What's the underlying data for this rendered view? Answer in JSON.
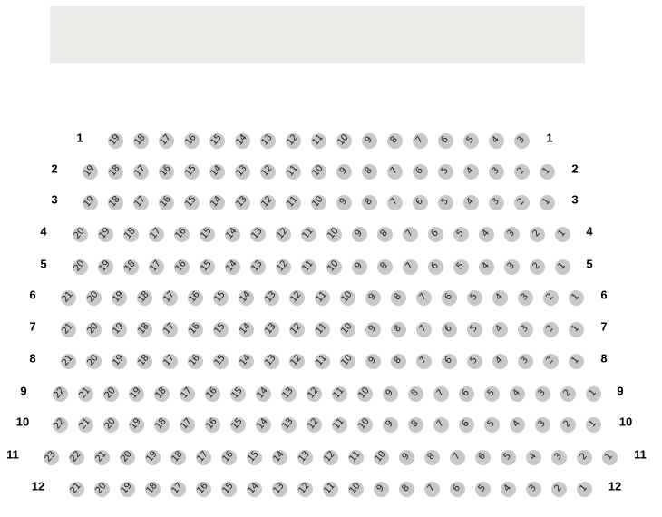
{
  "screen": {
    "label": ""
  },
  "seat_color": "#c8c8c8",
  "screen_color": "#ebebe7",
  "rows": [
    {
      "label": "1",
      "seats": [
        "19",
        "18",
        "17",
        "16",
        "15",
        "14",
        "13",
        "12",
        "11",
        "10",
        "9",
        "8",
        "7",
        "6",
        "5",
        "4",
        "3"
      ]
    },
    {
      "label": "2",
      "seats": [
        "19",
        "18",
        "17",
        "16",
        "15",
        "14",
        "13",
        "12",
        "11",
        "10",
        "9",
        "8",
        "7",
        "6",
        "5",
        "4",
        "3",
        "2",
        "1"
      ]
    },
    {
      "label": "3",
      "seats": [
        "19",
        "18",
        "17",
        "16",
        "15",
        "14",
        "13",
        "12",
        "11",
        "10",
        "9",
        "8",
        "7",
        "6",
        "5",
        "4",
        "3",
        "2",
        "1"
      ]
    },
    {
      "label": "4",
      "seats": [
        "20",
        "19",
        "18",
        "17",
        "16",
        "15",
        "14",
        "13",
        "12",
        "11",
        "10",
        "9",
        "8",
        "7",
        "6",
        "5",
        "4",
        "3",
        "2",
        "1"
      ]
    },
    {
      "label": "5",
      "seats": [
        "20",
        "19",
        "18",
        "17",
        "16",
        "15",
        "14",
        "13",
        "12",
        "11",
        "10",
        "9",
        "8",
        "7",
        "6",
        "5",
        "4",
        "3",
        "2",
        "1"
      ]
    },
    {
      "label": "6",
      "seats": [
        "21",
        "20",
        "19",
        "18",
        "17",
        "16",
        "15",
        "14",
        "13",
        "12",
        "11",
        "10",
        "9",
        "8",
        "7",
        "6",
        "5",
        "4",
        "3",
        "2",
        "1"
      ]
    },
    {
      "label": "7",
      "seats": [
        "21",
        "20",
        "19",
        "18",
        "17",
        "16",
        "15",
        "14",
        "13",
        "12",
        "11",
        "10",
        "9",
        "8",
        "7",
        "6",
        "5",
        "4",
        "3",
        "2",
        "1"
      ]
    },
    {
      "label": "8",
      "seats": [
        "21",
        "20",
        "19",
        "18",
        "17",
        "16",
        "15",
        "14",
        "13",
        "12",
        "11",
        "10",
        "9",
        "8",
        "7",
        "6",
        "5",
        "4",
        "3",
        "2",
        "1"
      ]
    },
    {
      "label": "9",
      "seats": [
        "22",
        "21",
        "20",
        "19",
        "18",
        "17",
        "16",
        "15",
        "14",
        "13",
        "12",
        "11",
        "10",
        "9",
        "8",
        "7",
        "6",
        "5",
        "4",
        "3",
        "2",
        "1"
      ]
    },
    {
      "label": "10",
      "seats": [
        "22",
        "21",
        "20",
        "19",
        "18",
        "17",
        "16",
        "15",
        "14",
        "13",
        "12",
        "11",
        "10",
        "9",
        "8",
        "7",
        "6",
        "5",
        "4",
        "3",
        "2",
        "1"
      ]
    },
    {
      "label": "11",
      "seats": [
        "23",
        "22",
        "21",
        "20",
        "19",
        "18",
        "17",
        "16",
        "15",
        "14",
        "13",
        "12",
        "11",
        "10",
        "9",
        "8",
        "7",
        "6",
        "5",
        "4",
        "3",
        "2",
        "1"
      ]
    },
    {
      "label": "12",
      "seats": [
        "21",
        "20",
        "19",
        "18",
        "17",
        "16",
        "15",
        "14",
        "13",
        "12",
        "11",
        "10",
        "9",
        "8",
        "7",
        "6",
        "5",
        "4",
        "3",
        "2",
        "1"
      ]
    }
  ]
}
